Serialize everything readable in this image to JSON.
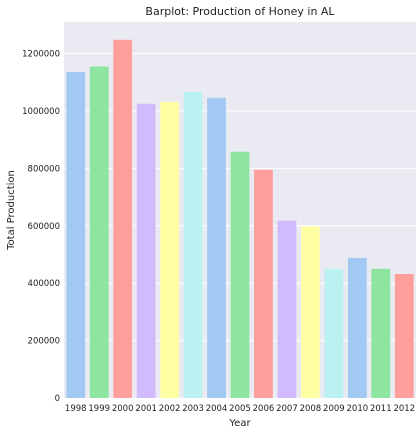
{
  "chart_data": {
    "type": "bar",
    "title": "Barplot: Production of Honey in AL",
    "xlabel": "Year",
    "ylabel": "Total Production",
    "categories": [
      "1998",
      "1999",
      "2000",
      "2001",
      "2002",
      "2003",
      "2004",
      "2005",
      "2006",
      "2007",
      "2008",
      "2009",
      "2010",
      "2011",
      "2012"
    ],
    "values": [
      1136000,
      1155000,
      1248000,
      1025000,
      1032000,
      1066000,
      1046000,
      858000,
      795000,
      618000,
      598000,
      450000,
      488000,
      450000,
      432000
    ],
    "ylim": [
      0,
      1310000
    ],
    "yticks": [
      {
        "value": 0,
        "label": "0"
      },
      {
        "value": 200000,
        "label": "200000"
      },
      {
        "value": 400000,
        "label": "400000"
      },
      {
        "value": 600000,
        "label": "600000"
      },
      {
        "value": 800000,
        "label": "800000"
      },
      {
        "value": 1000000,
        "label": "1000000"
      },
      {
        "value": 1200000,
        "label": "1200000"
      }
    ],
    "bar_colors": [
      "#a1c9f4",
      "#8de5a1",
      "#ff9f9b",
      "#d0bbff",
      "#fffea3",
      "#b9f2f0",
      "#a1c9f4",
      "#8de5a1",
      "#ff9f9b",
      "#d0bbff",
      "#fffea3",
      "#b9f2f0",
      "#a1c9f4",
      "#8de5a1",
      "#ff9f9b"
    ],
    "plot_background": "#eaeaf2",
    "grid": true,
    "grid_color": "#ffffff",
    "legend": false
  }
}
